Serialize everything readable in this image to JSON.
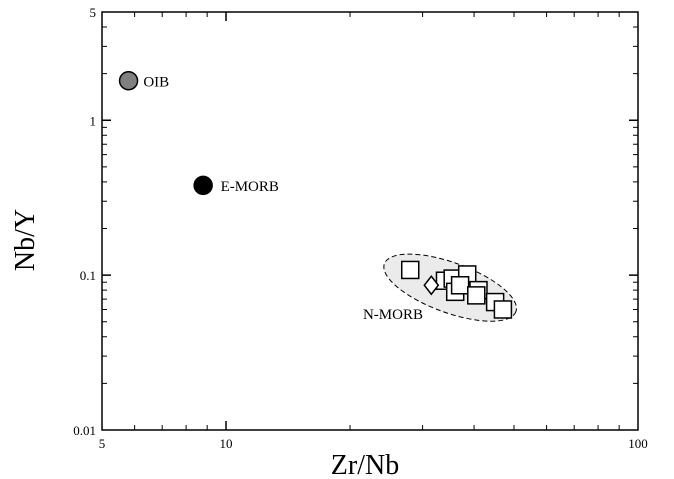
{
  "chart_data": {
    "type": "scatter",
    "title": "",
    "xlabel": "Zr/Nb",
    "ylabel": "Nb/Y",
    "xscale": "log",
    "yscale": "log",
    "xlim": [
      5,
      100
    ],
    "ylim": [
      0.01,
      5
    ],
    "x_ticks": [
      {
        "value": 5,
        "label": "5"
      },
      {
        "value": 10,
        "label": "10"
      },
      {
        "value": 100,
        "label": "100"
      }
    ],
    "y_ticks": [
      {
        "value": 0.01,
        "label": "0.01"
      },
      {
        "value": 0.1,
        "label": "0.1"
      },
      {
        "value": 1,
        "label": "1"
      },
      {
        "value": 5,
        "label": "5"
      }
    ],
    "grid": false,
    "series": [
      {
        "name": "OIB",
        "marker": "circle",
        "fill": "#808080",
        "points": [
          {
            "x": 5.8,
            "y": 1.8
          }
        ]
      },
      {
        "name": "E-MORB",
        "marker": "circle",
        "fill": "#000000",
        "points": [
          {
            "x": 8.8,
            "y": 0.38
          }
        ]
      },
      {
        "name": "N-MORB",
        "marker": "square",
        "fill": "#ffffff",
        "points": [
          {
            "x": 28.0,
            "y": 0.108
          },
          {
            "x": 34.0,
            "y": 0.092
          },
          {
            "x": 35.5,
            "y": 0.095
          },
          {
            "x": 38.5,
            "y": 0.101
          },
          {
            "x": 36.0,
            "y": 0.078
          },
          {
            "x": 37.0,
            "y": 0.086
          },
          {
            "x": 41.0,
            "y": 0.08
          },
          {
            "x": 40.5,
            "y": 0.074
          },
          {
            "x": 45.0,
            "y": 0.067
          },
          {
            "x": 47.0,
            "y": 0.06
          }
        ]
      },
      {
        "name": "",
        "marker": "diamond",
        "fill": "#ffffff",
        "points": [
          {
            "x": 31.5,
            "y": 0.086
          }
        ]
      }
    ],
    "annotations": [
      {
        "text": "OIB",
        "x": 6.3,
        "y": 1.65
      },
      {
        "text": "E-MORB",
        "x": 9.7,
        "y": 0.35
      },
      {
        "text": "N-MORB",
        "x": 21.5,
        "y": 0.052
      }
    ],
    "field": {
      "center_x": 35.0,
      "center_y": 0.083,
      "shape": "dashed-ellipse",
      "fill": "#ebebeb"
    }
  }
}
